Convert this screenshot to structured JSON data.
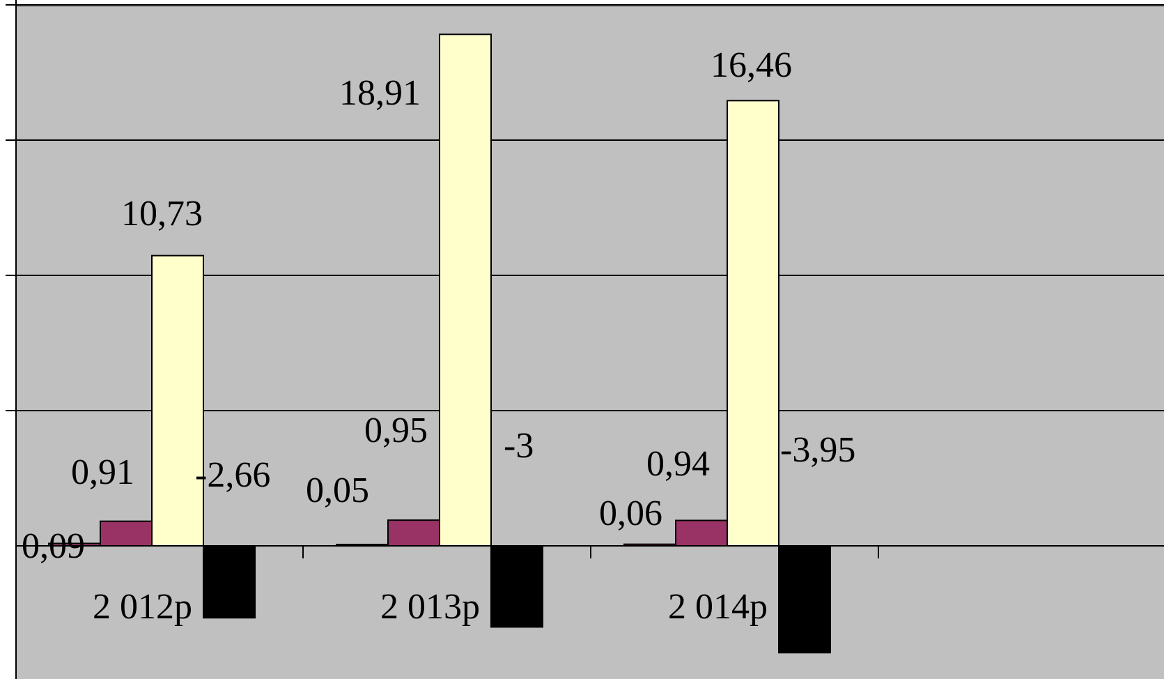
{
  "chart_data": {
    "type": "bar",
    "categories": [
      "2 012р",
      "2 013р",
      "2 014р"
    ],
    "series": [
      {
        "values": [
          0.09,
          0.05,
          0.06
        ],
        "color": "#9b3366",
        "labels": [
          "0,09",
          "0,05",
          "0,06"
        ]
      },
      {
        "values": [
          0.91,
          0.95,
          0.94
        ],
        "color": "#993366",
        "labels": [
          "0,91",
          "0,95",
          "0,94"
        ]
      },
      {
        "values": [
          10.73,
          18.91,
          16.46
        ],
        "color": "#ffffcc",
        "labels": [
          "10,73",
          "18,91",
          "16,46"
        ]
      },
      {
        "values": [
          -2.66,
          -3,
          -3.95
        ],
        "color": "#000000",
        "labels": [
          "-2,66",
          "-3",
          "-3,95"
        ]
      }
    ],
    "ylim": [
      -5,
      20
    ],
    "grid": true,
    "plot_background": "#c0c0c0"
  }
}
